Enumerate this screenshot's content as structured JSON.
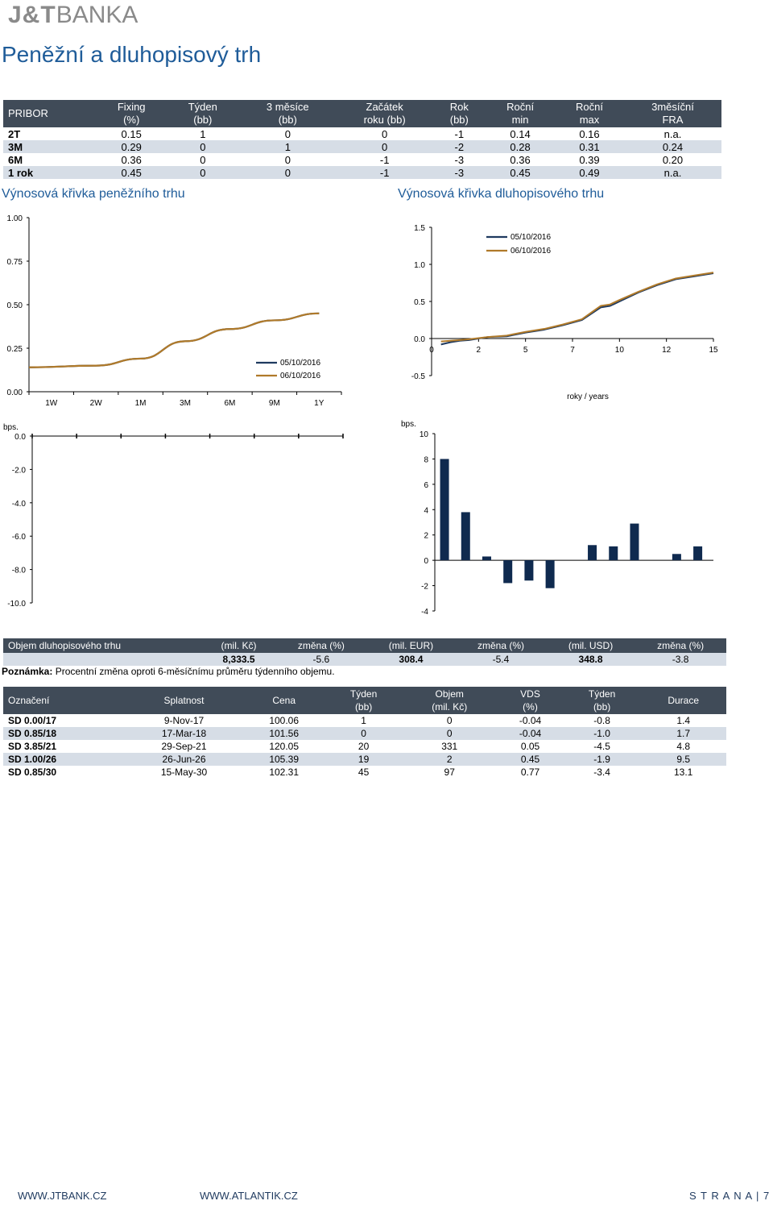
{
  "logo": {
    "part1": "J&T",
    "part2": "BANKA"
  },
  "page_title": "Peněžní a dluhopisový trh",
  "pribor": {
    "headers": [
      [
        "PRIBOR",
        ""
      ],
      [
        "Fixing",
        "(%)"
      ],
      [
        "Týden",
        "(bb)"
      ],
      [
        "3 měsíce",
        "(bb)"
      ],
      [
        "Začátek",
        "roku (bb)"
      ],
      [
        "Rok",
        "(bb)"
      ],
      [
        "Roční",
        "min"
      ],
      [
        "Roční",
        "max"
      ],
      [
        "3měsíční",
        "FRA"
      ]
    ],
    "rows": [
      [
        "2T",
        "0.15",
        "1",
        "0",
        "0",
        "-1",
        "0.14",
        "0.16",
        "n.a."
      ],
      [
        "3M",
        "0.29",
        "0",
        "1",
        "0",
        "-2",
        "0.28",
        "0.31",
        "0.24"
      ],
      [
        "6M",
        "0.36",
        "0",
        "0",
        "-1",
        "-3",
        "0.36",
        "0.39",
        "0.20"
      ],
      [
        "1 rok",
        "0.45",
        "0",
        "0",
        "-1",
        "-3",
        "0.45",
        "0.49",
        "n.a."
      ]
    ]
  },
  "section_money": "Výnosová křivka peněžního trhu",
  "section_bond": "Výnosová křivka dluhopisového trhu",
  "chart_data": [
    {
      "type": "line",
      "title": "Výnosová křivka peněžního trhu",
      "categories": [
        "1W",
        "2W",
        "1M",
        "3M",
        "6M",
        "9M",
        "1Y"
      ],
      "ylim": [
        0,
        1
      ],
      "yticks": [
        "1.00",
        "0.75",
        "0.50",
        "0.25",
        "0.00"
      ],
      "series": [
        {
          "name": "05/10/2016",
          "color": "#1f3a5f",
          "values": [
            0.14,
            0.15,
            0.19,
            0.29,
            0.36,
            0.41,
            0.45
          ]
        },
        {
          "name": "06/10/2016",
          "color": "#b07a2a",
          "values": [
            0.14,
            0.15,
            0.19,
            0.29,
            0.36,
            0.41,
            0.45
          ]
        }
      ]
    },
    {
      "type": "line",
      "title": "Výnosová křivka dluhopisového trhu",
      "xlabel": "roky / years",
      "xticks": [
        "0",
        "2",
        "5",
        "7",
        "10",
        "12",
        "15"
      ],
      "xlim": [
        0,
        15
      ],
      "ylim": [
        -0.5,
        1.5
      ],
      "yticks": [
        "1.5",
        "1.0",
        "0.5",
        "0.0",
        "-0.5"
      ],
      "x": [
        0.5,
        1,
        1.5,
        2,
        3,
        4,
        5,
        6,
        7,
        8,
        9,
        9.5,
        10,
        11,
        12,
        13,
        14,
        15
      ],
      "series": [
        {
          "name": "05/10/2016",
          "color": "#1f3a5f",
          "values": [
            -0.08,
            -0.05,
            -0.03,
            -0.02,
            0.02,
            0.03,
            0.08,
            0.12,
            0.18,
            0.25,
            0.42,
            0.44,
            0.5,
            0.62,
            0.72,
            0.8,
            0.84,
            0.88
          ]
        },
        {
          "name": "06/10/2016",
          "color": "#b07a2a",
          "values": [
            -0.04,
            -0.03,
            -0.02,
            -0.01,
            0.02,
            0.04,
            0.09,
            0.13,
            0.19,
            0.26,
            0.44,
            0.46,
            0.52,
            0.63,
            0.73,
            0.81,
            0.85,
            0.89
          ]
        }
      ]
    },
    {
      "type": "bar",
      "ylabel": "bps.",
      "ylim": [
        -10,
        0
      ],
      "yticks": [
        "0.0",
        "-2.0",
        "-4.0",
        "-6.0",
        "-8.0",
        "-10.0"
      ],
      "categories": [
        "1W",
        "2W",
        "1M",
        "3M",
        "6M",
        "9M",
        "1Y"
      ],
      "values": [
        0,
        0,
        0,
        0,
        0,
        0,
        0
      ]
    },
    {
      "type": "bar",
      "ylabel": "bps.",
      "ylim": [
        -4,
        10
      ],
      "yticks": [
        "10",
        "8",
        "6",
        "4",
        "2",
        "0",
        "-2",
        "-4"
      ],
      "values": [
        8,
        3.8,
        0.3,
        -1.8,
        -1.6,
        -2.2,
        0,
        1.2,
        1.1,
        2.9,
        0,
        0.5,
        1.1
      ],
      "color": "#0f2a4f"
    }
  ],
  "volume": {
    "headers": [
      "Objem dluhopisového trhu",
      "(mil. Kč)",
      "změna (%)",
      "(mil. EUR)",
      "změna (%)",
      "(mil. USD)",
      "změna (%)"
    ],
    "row": [
      "",
      "8,333.5",
      "-5.6",
      "308.4",
      "-5.4",
      "348.8",
      "-3.8"
    ],
    "note_bold": "Poznámka:",
    "note": " Procentní změna oproti 6-měsíčnímu průměru týdenního objemu."
  },
  "bonds": {
    "headers": [
      [
        "Označení",
        ""
      ],
      [
        "Splatnost",
        ""
      ],
      [
        "Cena",
        ""
      ],
      [
        "Týden",
        "(bb)"
      ],
      [
        "Objem",
        "(mil. Kč)"
      ],
      [
        "VDS",
        "(%)"
      ],
      [
        "Týden",
        "(bb)"
      ],
      [
        "Durace",
        ""
      ]
    ],
    "rows": [
      [
        "SD 0.00/17",
        "9-Nov-17",
        "100.06",
        "1",
        "0",
        "-0.04",
        "-0.8",
        "1.4"
      ],
      [
        "SD 0.85/18",
        "17-Mar-18",
        "101.56",
        "0",
        "0",
        "-0.04",
        "-1.0",
        "1.7"
      ],
      [
        "SD 3.85/21",
        "29-Sep-21",
        "120.05",
        "20",
        "331",
        "0.05",
        "-4.5",
        "4.8"
      ],
      [
        "SD 1.00/26",
        "26-Jun-26",
        "105.39",
        "19",
        "2",
        "0.45",
        "-1.9",
        "9.5"
      ],
      [
        "SD 0.85/30",
        "15-May-30",
        "102.31",
        "45",
        "97",
        "0.77",
        "-3.4",
        "13.1"
      ]
    ]
  },
  "footer": {
    "link1": "WWW.JTBANK.CZ",
    "link2": "WWW.ATLANTIK.CZ",
    "page": "S T R A N A | 7"
  }
}
